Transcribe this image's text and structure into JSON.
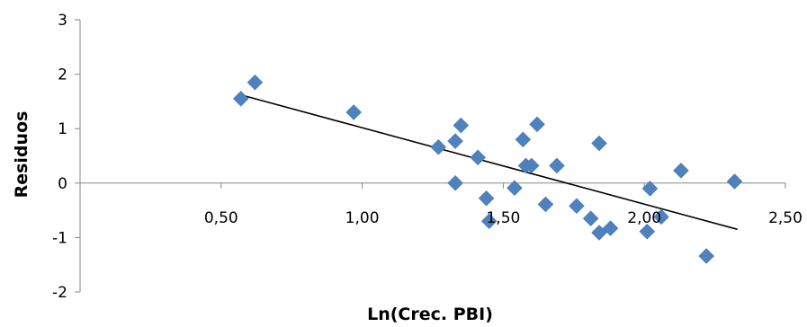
{
  "chart_data": {
    "type": "scatter",
    "xlabel": "Ln(Crec. PBI)",
    "ylabel": "Residuos",
    "xlim": [
      0.0,
      2.5
    ],
    "ylim": [
      -2,
      3
    ],
    "x_ticks": [
      "0,50",
      "1,00",
      "1,50",
      "2,00",
      "2,50"
    ],
    "x_tick_values": [
      0.5,
      1.0,
      1.5,
      2.0,
      2.5
    ],
    "y_ticks": [
      "-2",
      "-1",
      "0",
      "1",
      "2",
      "3"
    ],
    "y_tick_values": [
      -2,
      -1,
      0,
      1,
      2,
      3
    ],
    "grid": false,
    "marker": "diamond",
    "marker_color": "#4F81BD",
    "trendline": {
      "type": "linear",
      "x": [
        0.57,
        2.33
      ],
      "y": [
        1.62,
        -0.85
      ],
      "color": "#000000"
    },
    "points": [
      {
        "x": 0.57,
        "y": 1.55
      },
      {
        "x": 0.62,
        "y": 1.85
      },
      {
        "x": 0.97,
        "y": 1.3
      },
      {
        "x": 1.27,
        "y": 0.66
      },
      {
        "x": 1.33,
        "y": 0.77
      },
      {
        "x": 1.35,
        "y": 1.06
      },
      {
        "x": 1.33,
        "y": 0.0
      },
      {
        "x": 1.41,
        "y": 0.47
      },
      {
        "x": 1.44,
        "y": -0.28
      },
      {
        "x": 1.45,
        "y": -0.7
      },
      {
        "x": 1.54,
        "y": -0.09
      },
      {
        "x": 1.57,
        "y": 0.8
      },
      {
        "x": 1.58,
        "y": 0.32
      },
      {
        "x": 1.6,
        "y": 0.32
      },
      {
        "x": 1.62,
        "y": 1.08
      },
      {
        "x": 1.65,
        "y": -0.39
      },
      {
        "x": 1.69,
        "y": 0.32
      },
      {
        "x": 1.76,
        "y": -0.42
      },
      {
        "x": 1.81,
        "y": -0.65
      },
      {
        "x": 1.84,
        "y": 0.73
      },
      {
        "x": 1.84,
        "y": -0.91
      },
      {
        "x": 1.88,
        "y": -0.83
      },
      {
        "x": 2.01,
        "y": -0.89
      },
      {
        "x": 2.02,
        "y": -0.1
      },
      {
        "x": 2.06,
        "y": -0.62
      },
      {
        "x": 2.13,
        "y": 0.23
      },
      {
        "x": 2.22,
        "y": -1.34
      },
      {
        "x": 2.32,
        "y": 0.03
      }
    ]
  }
}
